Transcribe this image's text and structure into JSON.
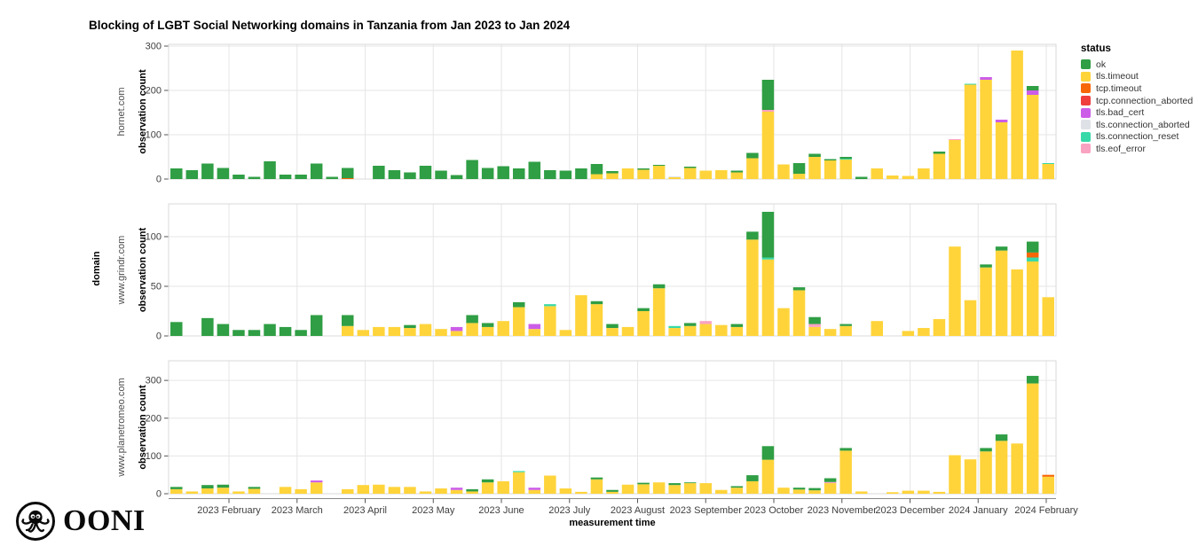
{
  "title": "Blocking of LGBT Social Networking domains in Tanzania from Jan 2023 to Jan 2024",
  "branding": {
    "logo_text": "OONI"
  },
  "legend": {
    "title": "status",
    "items": [
      "ok",
      "tls.timeout",
      "tcp.timeout",
      "tcp.connection_aborted",
      "tls.bad_cert",
      "tls.connection_aborted",
      "tls.connection_reset",
      "tls.eof_error"
    ]
  },
  "chart_data": {
    "type": "bar",
    "stacked": true,
    "xlabel": "measurement time",
    "ylabel": "observation count",
    "facet_label": "domain",
    "legend_position": "right",
    "grid": true,
    "x_tick_labels": [
      "2023 February",
      "2023 March",
      "2023 April",
      "2023 May",
      "2023 June",
      "2023 July",
      "2023 August",
      "2023 September",
      "2023 October",
      "2023 November",
      "2023 December",
      "2024 January",
      "2024 February"
    ],
    "stack_order": [
      "tls.timeout",
      "tls.eof_error",
      "tls.connection_reset",
      "tls.connection_aborted",
      "tls.bad_cert",
      "tcp.connection_aborted",
      "tcp.timeout",
      "ok"
    ],
    "colors": {
      "ok": "#2f9e44",
      "tls.timeout": "#ffd43b",
      "tcp.timeout": "#f76707",
      "tcp.connection_aborted": "#f03e3e",
      "tls.bad_cert": "#cc5de8",
      "tls.connection_aborted": "#dee2e6",
      "tls.connection_reset": "#38d9a9",
      "tls.eof_error": "#faa2c1"
    },
    "panels": [
      {
        "domain": "hornet.com",
        "ylim": [
          0,
          304
        ],
        "yticks": [
          0,
          100,
          200,
          300
        ],
        "bars": [
          {
            "ok": 24
          },
          {
            "ok": 20
          },
          {
            "ok": 35
          },
          {
            "ok": 25
          },
          {
            "ok": 10
          },
          {
            "ok": 5
          },
          {
            "ok": 40
          },
          {
            "ok": 10
          },
          {
            "ok": 10
          },
          {
            "ok": 35
          },
          {
            "ok": 5
          },
          {
            "tcp.timeout": 2,
            "ok": 23
          },
          {},
          {
            "ok": 30
          },
          {
            "ok": 20
          },
          {
            "ok": 15
          },
          {
            "ok": 30
          },
          {
            "ok": 19
          },
          {
            "ok": 9
          },
          {
            "ok": 43
          },
          {
            "ok": 25
          },
          {
            "ok": 29
          },
          {
            "ok": 24
          },
          {
            "ok": 39
          },
          {
            "ok": 20
          },
          {
            "ok": 19
          },
          {
            "ok": 24
          },
          {
            "tls.timeout": 11,
            "ok": 23
          },
          {
            "tls.timeout": 13,
            "ok": 5
          },
          {
            "tls.timeout": 24
          },
          {
            "tls.timeout": 21,
            "ok": 3
          },
          {
            "tls.timeout": 30,
            "ok": 2
          },
          {
            "tls.timeout": 4,
            "tls.connection_aborted": 2
          },
          {
            "tls.timeout": 25,
            "ok": 3
          },
          {
            "tls.timeout": 19
          },
          {
            "tls.timeout": 20
          },
          {
            "tls.timeout": 15,
            "ok": 4
          },
          {
            "tls.timeout": 47,
            "ok": 12
          },
          {
            "tls.timeout": 152,
            "tls.eof_error": 4,
            "ok": 68
          },
          {
            "tls.timeout": 33
          },
          {
            "tls.timeout": 12,
            "ok": 24
          },
          {
            "tls.timeout": 50,
            "ok": 7
          },
          {
            "tls.timeout": 42,
            "ok": 3
          },
          {
            "tls.timeout": 44,
            "tls.connection_reset": 2,
            "ok": 4
          },
          {
            "ok": 5
          },
          {
            "tls.timeout": 24
          },
          {
            "tls.timeout": 8
          },
          {
            "tls.timeout": 7
          },
          {
            "tls.timeout": 24
          },
          {
            "tls.timeout": 57,
            "ok": 5
          },
          {
            "tls.timeout": 88,
            "tls.eof_error": 2
          },
          {
            "tls.timeout": 213,
            "tls.connection_reset": 2
          },
          {
            "tls.timeout": 224,
            "tls.bad_cert": 6
          },
          {
            "tls.timeout": 128,
            "tls.bad_cert": 6
          },
          {
            "tls.timeout": 290
          },
          {
            "tls.timeout": 190,
            "tls.bad_cert": 10,
            "ok": 10
          },
          {
            "tls.timeout": 34,
            "tls.connection_reset": 2
          }
        ]
      },
      {
        "domain": "www.grindr.com",
        "ylim": [
          0,
          133
        ],
        "yticks": [
          0,
          50,
          100
        ],
        "bars": [
          {
            "ok": 14
          },
          {},
          {
            "ok": 18
          },
          {
            "ok": 12
          },
          {
            "ok": 6
          },
          {
            "ok": 6
          },
          {
            "ok": 12
          },
          {
            "ok": 9
          },
          {
            "ok": 6
          },
          {
            "ok": 21
          },
          {},
          {
            "tls.timeout": 10,
            "ok": 11
          },
          {
            "tls.timeout": 6
          },
          {
            "tls.timeout": 9
          },
          {
            "tls.timeout": 9
          },
          {
            "tls.timeout": 8,
            "ok": 3
          },
          {
            "tls.timeout": 12
          },
          {
            "tls.timeout": 7
          },
          {
            "tls.timeout": 5,
            "tls.bad_cert": 4
          },
          {
            "tls.timeout": 13,
            "ok": 8
          },
          {
            "tls.timeout": 9,
            "ok": 4
          },
          {
            "tls.timeout": 15
          },
          {
            "tls.timeout": 29,
            "ok": 5
          },
          {
            "tls.timeout": 7,
            "tls.bad_cert": 5
          },
          {
            "tls.timeout": 30,
            "tls.connection_reset": 2
          },
          {
            "tls.timeout": 6
          },
          {
            "tls.timeout": 41
          },
          {
            "tls.timeout": 32,
            "ok": 3
          },
          {
            "tls.timeout": 8,
            "ok": 4
          },
          {
            "tls.timeout": 9
          },
          {
            "tls.timeout": 25,
            "ok": 3
          },
          {
            "tls.timeout": 48,
            "ok": 4
          },
          {
            "tls.timeout": 8,
            "tls.connection_reset": 2
          },
          {
            "tls.timeout": 10,
            "ok": 3
          },
          {
            "tls.timeout": 12,
            "tls.eof_error": 3
          },
          {
            "tls.timeout": 11
          },
          {
            "tls.timeout": 9,
            "ok": 3
          },
          {
            "tls.timeout": 97,
            "ok": 8
          },
          {
            "tls.timeout": 77,
            "tls.connection_reset": 2,
            "ok": 46
          },
          {
            "tls.timeout": 28
          },
          {
            "tls.timeout": 46,
            "ok": 3
          },
          {
            "tls.timeout": 9,
            "tls.eof_error": 3,
            "ok": 7
          },
          {
            "tls.timeout": 7
          },
          {
            "tls.timeout": 10,
            "ok": 2
          },
          {},
          {
            "tls.timeout": 15
          },
          {},
          {
            "tls.timeout": 5
          },
          {
            "tls.timeout": 8
          },
          {
            "tls.timeout": 17
          },
          {
            "tls.timeout": 90
          },
          {
            "tls.timeout": 36
          },
          {
            "tls.timeout": 69,
            "ok": 3
          },
          {
            "tls.timeout": 86,
            "ok": 4
          },
          {
            "tls.timeout": 67
          },
          {
            "tls.timeout": 75,
            "tls.connection_reset": 4,
            "tcp.timeout": 5,
            "ok": 11
          },
          {
            "tls.timeout": 39
          }
        ]
      },
      {
        "domain": "www.planetromeo.com",
        "ylim": [
          0,
          352
        ],
        "yticks": [
          0,
          100,
          200,
          300
        ],
        "bars": [
          {
            "tls.timeout": 12,
            "ok": 6
          },
          {
            "tls.timeout": 6
          },
          {
            "tls.timeout": 14,
            "ok": 9
          },
          {
            "tls.timeout": 16,
            "ok": 8
          },
          {
            "tls.timeout": 6
          },
          {
            "tls.timeout": 13,
            "ok": 5
          },
          {},
          {
            "tls.timeout": 18
          },
          {
            "tls.timeout": 12
          },
          {
            "tls.timeout": 30,
            "tls.bad_cert": 5
          },
          {},
          {
            "tls.timeout": 12
          },
          {
            "tls.timeout": 23
          },
          {
            "tls.timeout": 24
          },
          {
            "tls.timeout": 18
          },
          {
            "tls.timeout": 18
          },
          {
            "tls.timeout": 6
          },
          {
            "tls.timeout": 14
          },
          {
            "tls.timeout": 10,
            "tls.bad_cert": 6
          },
          {
            "tls.timeout": 6,
            "ok": 6
          },
          {
            "tls.timeout": 30,
            "ok": 8
          },
          {
            "tls.timeout": 33
          },
          {
            "tls.timeout": 57,
            "tls.connection_reset": 3
          },
          {
            "tls.timeout": 10,
            "tls.bad_cert": 6
          },
          {
            "tls.timeout": 48
          },
          {
            "tls.timeout": 14
          },
          {
            "tls.timeout": 5
          },
          {
            "tls.timeout": 38,
            "ok": 5
          },
          {
            "tls.timeout": 5,
            "ok": 5
          },
          {
            "tls.timeout": 24
          },
          {
            "tls.timeout": 25,
            "ok": 4
          },
          {
            "tls.timeout": 30
          },
          {
            "tls.timeout": 23,
            "ok": 5
          },
          {
            "tls.timeout": 28,
            "ok": 2
          },
          {
            "tls.timeout": 28
          },
          {
            "tls.timeout": 10
          },
          {
            "tls.timeout": 16,
            "ok": 4
          },
          {
            "tls.timeout": 33,
            "ok": 16
          },
          {
            "tls.timeout": 90,
            "ok": 36
          },
          {
            "tls.timeout": 16
          },
          {
            "tls.timeout": 11,
            "ok": 5
          },
          {
            "tls.timeout": 9,
            "ok": 6
          },
          {
            "tls.timeout": 28,
            "tls.eof_error": 3,
            "ok": 10
          },
          {
            "tls.timeout": 114,
            "ok": 7
          },
          {
            "tls.timeout": 6
          },
          {},
          {
            "tls.timeout": 4
          },
          {
            "tls.timeout": 8
          },
          {
            "tls.timeout": 8
          },
          {
            "tls.timeout": 5
          },
          {
            "tls.timeout": 102
          },
          {
            "tls.timeout": 91
          },
          {
            "tls.timeout": 112,
            "ok": 9
          },
          {
            "tls.timeout": 140,
            "ok": 17
          },
          {
            "tls.timeout": 133
          },
          {
            "tls.timeout": 292,
            "ok": 20
          },
          {
            "tls.timeout": 45,
            "tcp.timeout": 5
          }
        ]
      }
    ]
  }
}
